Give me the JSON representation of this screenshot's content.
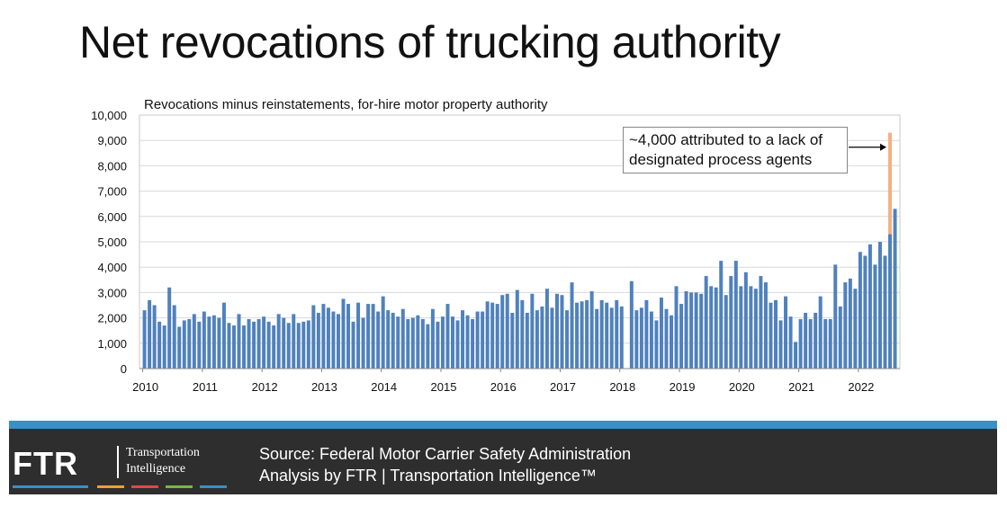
{
  "title": "Net revocations of trucking authority",
  "footer": {
    "logo_text": "FTR",
    "logo_tag_line1": "Transportation",
    "logo_tag_line2": "Intelligence",
    "source_line1": "Source: Federal Motor Carrier Safety Administration",
    "source_line2": "Analysis by FTR | Transportation Intelligence™"
  },
  "colors": {
    "bar": "#4f81bd",
    "highlight": "#f4b183",
    "footer_bg": "#2e2e2e",
    "footer_accent": "#3a8fc4",
    "stripes": [
      "#3a8fc4",
      "#f0a030",
      "#e04848",
      "#7ab648",
      "#3a8fc4"
    ]
  },
  "chart_data": {
    "type": "bar",
    "title": "Revocations minus reinstatements, for-hire motor property authority",
    "xlabel": "",
    "ylabel": "",
    "ylim": [
      0,
      10000
    ],
    "yticks": [
      "0",
      "1,000",
      "2,000",
      "3,000",
      "4,000",
      "5,000",
      "6,000",
      "7,000",
      "8,000",
      "9,000",
      "10,000"
    ],
    "xtick_labels": [
      "2010",
      "2011",
      "2012",
      "2013",
      "2014",
      "2015",
      "2016",
      "2017",
      "2018",
      "2019",
      "2020",
      "2021",
      "2022"
    ],
    "grid": true,
    "start": "2010-01",
    "series": [
      {
        "values": [
          2300,
          2700,
          2500,
          1850,
          1700,
          3200,
          2500,
          1650,
          1900,
          1950,
          2150,
          1850,
          2250,
          2050,
          2100,
          2000,
          2600,
          1800,
          1700,
          2150,
          1700,
          1950,
          1850,
          1950,
          2050,
          1850,
          1700,
          2150,
          2000,
          1800,
          2150,
          1800,
          1850,
          1900,
          2500,
          2200,
          2550,
          2400,
          2250,
          2150,
          2750,
          2550,
          1850,
          2600,
          2000,
          2550,
          2550,
          2250,
          2850,
          2300,
          2200,
          2050,
          2350,
          1950,
          2000,
          2100,
          1950,
          1750,
          2350,
          1850,
          2050,
          2550,
          2050,
          1900,
          2300,
          2100,
          1950,
          2250,
          2250,
          2650,
          2600,
          2550,
          2900,
          2950,
          2200,
          3100,
          2700,
          2200,
          2950,
          2300,
          2450,
          3150,
          2400,
          2950,
          2900,
          2300,
          3400,
          2600,
          2650,
          2700,
          3050,
          2350,
          2700,
          2600,
          2400,
          2700,
          2450,
          0,
          3450,
          2300,
          2400,
          2700,
          2250,
          1900,
          2800,
          2350,
          2100,
          3250,
          2550,
          3050,
          3000,
          3000,
          2950,
          3650,
          3250,
          3200,
          4250,
          2900,
          3650,
          4250,
          3250,
          3800,
          3250,
          3150,
          3650,
          3400,
          2600,
          2700,
          1900,
          2850,
          2050,
          1050,
          1950,
          2200,
          1950,
          2200,
          2850,
          1950,
          1950,
          4100,
          2450,
          3400,
          3550,
          3150,
          4600,
          4450,
          4900,
          4100,
          5000,
          4450,
          5300,
          6300
        ],
        "highlight": {
          "index": 150,
          "extra": 4000
        }
      }
    ],
    "annotation": "~4,000 attributed to a lack of designated process agents"
  }
}
